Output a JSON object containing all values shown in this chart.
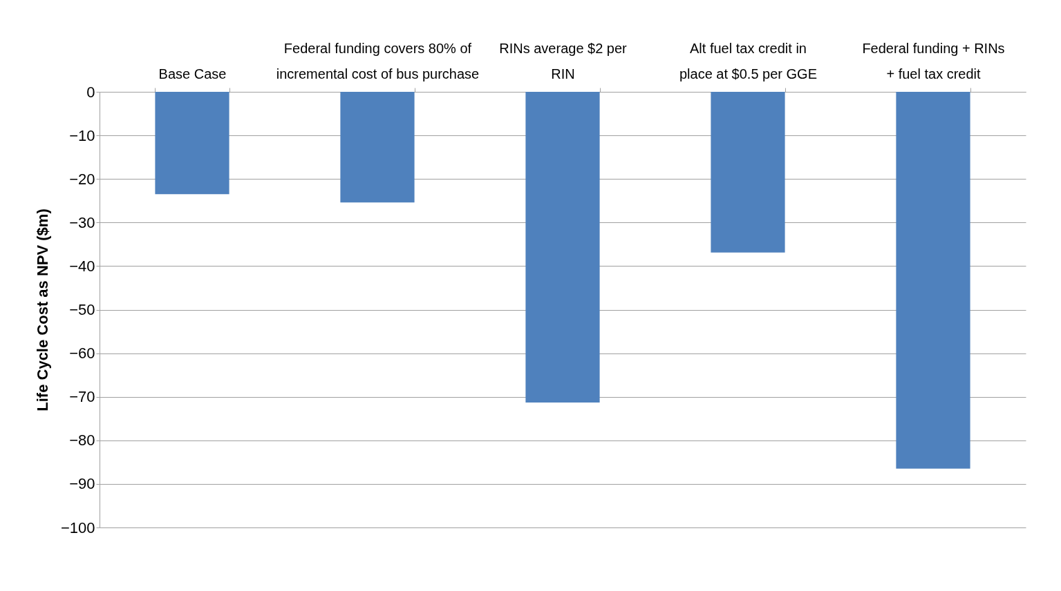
{
  "chart_data": {
    "type": "bar",
    "categories": [
      "Base Case",
      "Federal funding covers 80% of incremental cost of bus purchase",
      "RINs average $2 per RIN",
      "Alt fuel tax credit in place at $0.5 per GGE",
      "Federal funding + RINs + fuel tax credit"
    ],
    "values": [
      -23.5,
      -25.4,
      -71.3,
      -36.9,
      -86.5
    ],
    "color": "#4f81bd",
    "ylabel": "Life Cycle Cost as NPV ($m)",
    "ylim": [
      -100,
      0
    ],
    "yticks": [
      0,
      -10,
      -20,
      -30,
      -40,
      -50,
      -60,
      -70,
      -80,
      -90,
      -100
    ],
    "grid": "y"
  }
}
